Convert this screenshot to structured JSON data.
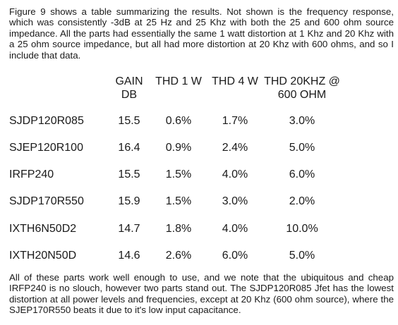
{
  "intro_text": "Figure 9 shows a table summarizing the results. Not shown is the frequency response, which was consistently -3dB at 25 Hz and 25 Khz with both the 25 and 600 ohm source impedance. All the parts had essentially the same 1 watt distortion at 1 Khz and 20 Khz with a 25 ohm source impedance, but all had more distortion at 20 Khz with 600 ohms, and so I include that data.",
  "table": {
    "headers": {
      "gain_line1": "GAIN",
      "gain_line2": "DB",
      "thd1": "THD 1 W",
      "thd4": "THD 4 W",
      "thd20_line1": "THD 20KHZ @",
      "thd20_line2": "600 OHM"
    },
    "rows": [
      {
        "part": "SJDP120R085",
        "gain": "15.5",
        "thd1": "0.6%",
        "thd4": "1.7%",
        "thd20": "3.0%"
      },
      {
        "part": "SJEP120R100",
        "gain": "16.4",
        "thd1": "0.9%",
        "thd4": "2.4%",
        "thd20": "5.0%"
      },
      {
        "part": "IRFP240",
        "gain": "15.5",
        "thd1": "1.5%",
        "thd4": "4.0%",
        "thd20": "6.0%"
      },
      {
        "part": "SJDP170R550",
        "gain": "15.9",
        "thd1": "1.5%",
        "thd4": "3.0%",
        "thd20": "2.0%"
      },
      {
        "part": "IXTH6N50D2",
        "gain": "14.7",
        "thd1": "1.8%",
        "thd4": "4.0%",
        "thd20": "10.0%"
      },
      {
        "part": "IXTH20N50D",
        "gain": "14.6",
        "thd1": "2.6%",
        "thd4": "6.0%",
        "thd20": "5.0%"
      }
    ]
  },
  "outro_text": "All of these parts work well enough to use, and we note that the ubiquitous and cheap IRFP240 is no slouch, however two parts stand out. The SJDP120R085 Jfet has the lowest distortion at all power levels and frequencies, except at 20 Khz (600 ohm source), where the SJEP170R550 beats it due to it's low input capacitance."
}
